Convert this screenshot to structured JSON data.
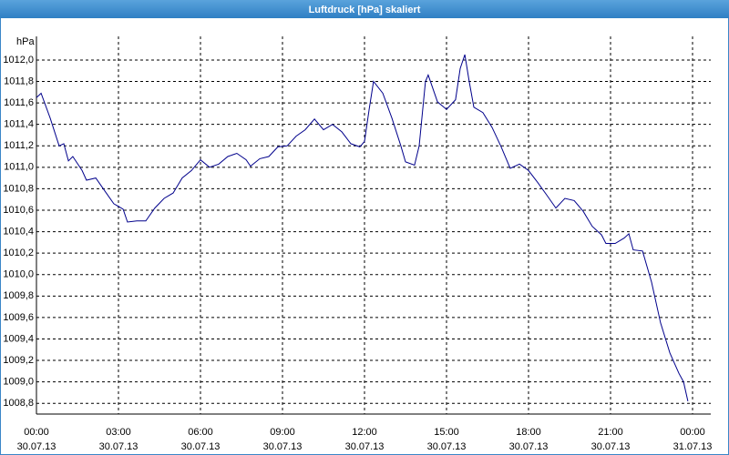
{
  "chart_data": {
    "type": "line",
    "title": "Luftdruck [hPa] skaliert",
    "y_unit": "hPa",
    "xlim": [
      0,
      24
    ],
    "xticks": [
      {
        "value": 0,
        "label": "00:00",
        "date": "30.07.13"
      },
      {
        "value": 3,
        "label": "03:00",
        "date": "30.07.13"
      },
      {
        "value": 6,
        "label": "06:00",
        "date": "30.07.13"
      },
      {
        "value": 9,
        "label": "09:00",
        "date": "30.07.13"
      },
      {
        "value": 12,
        "label": "12:00",
        "date": "30.07.13"
      },
      {
        "value": 15,
        "label": "15:00",
        "date": "30.07.13"
      },
      {
        "value": 18,
        "label": "18:00",
        "date": "30.07.13"
      },
      {
        "value": 21,
        "label": "21:00",
        "date": "30.07.13"
      },
      {
        "value": 24,
        "label": "00:00",
        "date": "31.07.13"
      }
    ],
    "ylim": [
      1008.7,
      1012.22
    ],
    "yticks": [
      {
        "value": 1008.8,
        "label": "1008,8"
      },
      {
        "value": 1009.0,
        "label": "1009,0"
      },
      {
        "value": 1009.2,
        "label": "1009,2"
      },
      {
        "value": 1009.4,
        "label": "1009,4"
      },
      {
        "value": 1009.6,
        "label": "1009,6"
      },
      {
        "value": 1009.8,
        "label": "1009,8"
      },
      {
        "value": 1010.0,
        "label": "1010,0"
      },
      {
        "value": 1010.2,
        "label": "1010,2"
      },
      {
        "value": 1010.4,
        "label": "1010,4"
      },
      {
        "value": 1010.6,
        "label": "1010,6"
      },
      {
        "value": 1010.8,
        "label": "1010,8"
      },
      {
        "value": 1011.0,
        "label": "1011,0"
      },
      {
        "value": 1011.2,
        "label": "1011,2"
      },
      {
        "value": 1011.4,
        "label": "1011,4"
      },
      {
        "value": 1011.6,
        "label": "1011,6"
      },
      {
        "value": 1011.8,
        "label": "1011,8"
      },
      {
        "value": 1012.0,
        "label": "1012,0"
      }
    ],
    "grid": true,
    "color": "#00008b",
    "x": [
      0,
      0.17,
      0.5,
      0.83,
      1,
      1.17,
      1.33,
      1.67,
      1.83,
      2.17,
      2.5,
      2.83,
      3.17,
      3.33,
      3.67,
      4,
      4.33,
      4.67,
      5,
      5.33,
      5.67,
      6,
      6.33,
      6.67,
      7,
      7.33,
      7.67,
      7.83,
      8.17,
      8.5,
      8.83,
      9.17,
      9.5,
      9.83,
      10.17,
      10.5,
      10.83,
      11.17,
      11.5,
      11.83,
      12,
      12.17,
      12.33,
      12.67,
      13,
      13.33,
      13.5,
      13.83,
      14,
      14.23,
      14.33,
      14.67,
      15,
      15.33,
      15.5,
      15.67,
      15.83,
      16,
      16.33,
      16.67,
      17,
      17.33,
      17.67,
      18,
      18.33,
      18.67,
      19,
      19.33,
      19.67,
      20,
      20.33,
      20.67,
      20.83,
      21.17,
      21.5,
      21.67,
      21.83,
      22.17,
      22.5,
      22.83,
      23.17,
      23.5,
      23.67,
      23.83
    ],
    "values": [
      1011.65,
      1011.69,
      1011.46,
      1011.2,
      1011.22,
      1011.06,
      1011.1,
      1010.97,
      1010.88,
      1010.9,
      1010.78,
      1010.66,
      1010.61,
      1010.49,
      1010.5,
      1010.5,
      1010.62,
      1010.71,
      1010.76,
      1010.9,
      1010.97,
      1011.07,
      1011.0,
      1011.03,
      1011.1,
      1011.13,
      1011.07,
      1011.01,
      1011.08,
      1011.1,
      1011.19,
      1011.2,
      1011.29,
      1011.35,
      1011.45,
      1011.35,
      1011.4,
      1011.33,
      1011.22,
      1011.19,
      1011.24,
      1011.54,
      1011.8,
      1011.69,
      1011.46,
      1011.2,
      1011.05,
      1011.02,
      1011.2,
      1011.8,
      1011.86,
      1011.61,
      1011.54,
      1011.63,
      1011.92,
      1012.05,
      1011.8,
      1011.56,
      1011.51,
      1011.37,
      1011.19,
      1010.99,
      1011.03,
      1010.97,
      1010.86,
      1010.74,
      1010.62,
      1010.71,
      1010.69,
      1010.59,
      1010.45,
      1010.37,
      1010.29,
      1010.29,
      1010.34,
      1010.38,
      1010.23,
      1010.22,
      1009.93,
      1009.55,
      1009.27,
      1009.08,
      1009.0,
      1008.82
    ]
  }
}
